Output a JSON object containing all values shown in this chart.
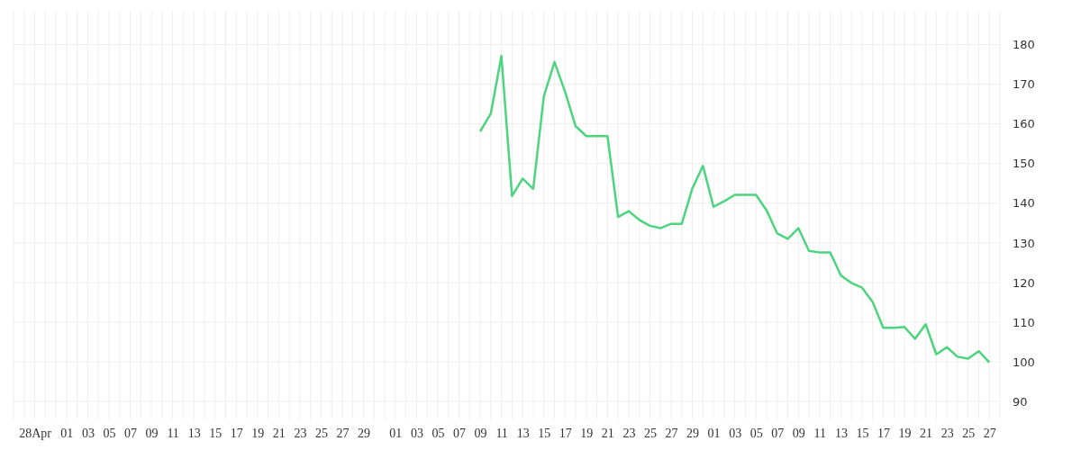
{
  "chart_data": {
    "type": "line",
    "grid": true,
    "marker": "none",
    "line_style": "solid",
    "xlim": [
      "--04-26",
      "--07-28"
    ],
    "ylim": [
      85.5,
      188.5
    ],
    "yticks": [
      90,
      100,
      110,
      120,
      130,
      140,
      150,
      160,
      170,
      180
    ],
    "xticks": [
      {
        "value": "--04-26",
        "label": null
      },
      {
        "value": "--04-27",
        "label": null
      },
      {
        "value": "--04-28",
        "label": "28Apr"
      },
      {
        "value": "--04-29",
        "label": null
      },
      {
        "value": "--04-30",
        "label": null
      },
      {
        "value": "--05-01",
        "label": "01"
      },
      {
        "value": "--05-02",
        "label": null
      },
      {
        "value": "--05-03",
        "label": "03"
      },
      {
        "value": "--05-04",
        "label": null
      },
      {
        "value": "--05-05",
        "label": "05"
      },
      {
        "value": "--05-06",
        "label": null
      },
      {
        "value": "--05-07",
        "label": "07"
      },
      {
        "value": "--05-08",
        "label": null
      },
      {
        "value": "--05-09",
        "label": "09"
      },
      {
        "value": "--05-10",
        "label": null
      },
      {
        "value": "--05-11",
        "label": "11"
      },
      {
        "value": "--05-12",
        "label": null
      },
      {
        "value": "--05-13",
        "label": "13"
      },
      {
        "value": "--05-14",
        "label": null
      },
      {
        "value": "--05-15",
        "label": "15"
      },
      {
        "value": "--05-16",
        "label": null
      },
      {
        "value": "--05-17",
        "label": "17"
      },
      {
        "value": "--05-18",
        "label": null
      },
      {
        "value": "--05-19",
        "label": "19"
      },
      {
        "value": "--05-20",
        "label": null
      },
      {
        "value": "--05-21",
        "label": "21"
      },
      {
        "value": "--05-22",
        "label": null
      },
      {
        "value": "--05-23",
        "label": "23"
      },
      {
        "value": "--05-24",
        "label": null
      },
      {
        "value": "--05-25",
        "label": "25"
      },
      {
        "value": "--05-26",
        "label": null
      },
      {
        "value": "--05-27",
        "label": "27"
      },
      {
        "value": "--05-28",
        "label": null
      },
      {
        "value": "--05-29",
        "label": "29"
      },
      {
        "value": "--05-30",
        "label": null
      },
      {
        "value": "--05-31",
        "label": null
      },
      {
        "value": "--06-01",
        "label": "01"
      },
      {
        "value": "--06-02",
        "label": null
      },
      {
        "value": "--06-03",
        "label": "03"
      },
      {
        "value": "--06-04",
        "label": null
      },
      {
        "value": "--06-05",
        "label": "05"
      },
      {
        "value": "--06-06",
        "label": null
      },
      {
        "value": "--06-07",
        "label": "07"
      },
      {
        "value": "--06-08",
        "label": null
      },
      {
        "value": "--06-09",
        "label": "09"
      },
      {
        "value": "--06-10",
        "label": null
      },
      {
        "value": "--06-11",
        "label": "11"
      },
      {
        "value": "--06-12",
        "label": null
      },
      {
        "value": "--06-13",
        "label": "13"
      },
      {
        "value": "--06-14",
        "label": null
      },
      {
        "value": "--06-15",
        "label": "15"
      },
      {
        "value": "--06-16",
        "label": null
      },
      {
        "value": "--06-17",
        "label": "17"
      },
      {
        "value": "--06-18",
        "label": null
      },
      {
        "value": "--06-19",
        "label": "19"
      },
      {
        "value": "--06-20",
        "label": null
      },
      {
        "value": "--06-21",
        "label": "21"
      },
      {
        "value": "--06-22",
        "label": null
      },
      {
        "value": "--06-23",
        "label": "23"
      },
      {
        "value": "--06-24",
        "label": null
      },
      {
        "value": "--06-25",
        "label": "25"
      },
      {
        "value": "--06-26",
        "label": null
      },
      {
        "value": "--06-27",
        "label": "27"
      },
      {
        "value": "--06-28",
        "label": null
      },
      {
        "value": "--06-29",
        "label": "29"
      },
      {
        "value": "--06-30",
        "label": null
      },
      {
        "value": "--07-01",
        "label": "01"
      },
      {
        "value": "--07-02",
        "label": null
      },
      {
        "value": "--07-03",
        "label": "03"
      },
      {
        "value": "--07-04",
        "label": null
      },
      {
        "value": "--07-05",
        "label": "05"
      },
      {
        "value": "--07-06",
        "label": null
      },
      {
        "value": "--07-07",
        "label": "07"
      },
      {
        "value": "--07-08",
        "label": null
      },
      {
        "value": "--07-09",
        "label": "09"
      },
      {
        "value": "--07-10",
        "label": null
      },
      {
        "value": "--07-11",
        "label": "11"
      },
      {
        "value": "--07-12",
        "label": null
      },
      {
        "value": "--07-13",
        "label": "13"
      },
      {
        "value": "--07-14",
        "label": null
      },
      {
        "value": "--07-15",
        "label": "15"
      },
      {
        "value": "--07-16",
        "label": null
      },
      {
        "value": "--07-17",
        "label": "17"
      },
      {
        "value": "--07-18",
        "label": null
      },
      {
        "value": "--07-19",
        "label": "19"
      },
      {
        "value": "--07-20",
        "label": null
      },
      {
        "value": "--07-21",
        "label": "21"
      },
      {
        "value": "--07-22",
        "label": null
      },
      {
        "value": "--07-23",
        "label": "23"
      },
      {
        "value": "--07-24",
        "label": null
      },
      {
        "value": "--07-25",
        "label": "25"
      },
      {
        "value": "--07-26",
        "label": null
      },
      {
        "value": "--07-27",
        "label": "27"
      },
      {
        "value": "--07-28",
        "label": null
      }
    ],
    "x": [
      "--06-09",
      "--06-10",
      "--06-11",
      "--06-12",
      "--06-13",
      "--06-14",
      "--06-15",
      "--06-16",
      "--06-17",
      "--06-18",
      "--06-19",
      "--06-20",
      "--06-21",
      "--06-22",
      "--06-23",
      "--06-24",
      "--06-25",
      "--06-26",
      "--06-27",
      "--06-28",
      "--06-29",
      "--06-30",
      "--07-01",
      "--07-02",
      "--07-03",
      "--07-04",
      "--07-05",
      "--07-06",
      "--07-07",
      "--07-08",
      "--07-09",
      "--07-10",
      "--07-11",
      "--07-12",
      "--07-13",
      "--07-14",
      "--07-15",
      "--07-16",
      "--07-17",
      "--07-18",
      "--07-19",
      "--07-20",
      "--07-21",
      "--07-22",
      "--07-23",
      "--07-24",
      "--07-25",
      "--07-26",
      "--07-27"
    ],
    "series": [
      {
        "color": "#4cd47f",
        "values": [
          158.1,
          162.6,
          177.1,
          141.8,
          146.2,
          143.6,
          166.9,
          175.6,
          168.1,
          159.4,
          156.9,
          156.9,
          156.9,
          136.5,
          138.0,
          135.8,
          134.3,
          133.7,
          134.8,
          134.8,
          143.7,
          149.4,
          139.1,
          140.5,
          142.1,
          142.1,
          142.1,
          138.2,
          132.4,
          131.0,
          133.7,
          128.0,
          127.6,
          127.6,
          121.8,
          119.9,
          118.7,
          115.1,
          108.6,
          108.6,
          108.8,
          105.8,
          109.5,
          101.9,
          103.7,
          101.3,
          100.8,
          102.7,
          99.9
        ]
      }
    ]
  }
}
